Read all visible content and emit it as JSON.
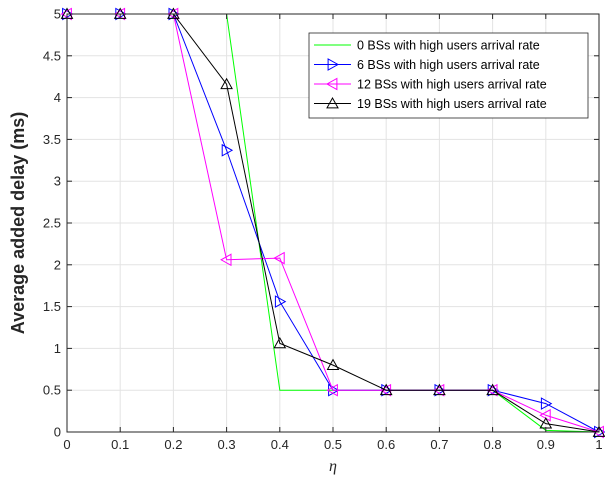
{
  "chart_data": {
    "type": "line",
    "title": "",
    "xlabel": "η",
    "ylabel": "Average added delay (ms)",
    "xlim": [
      0,
      1
    ],
    "ylim": [
      0,
      5
    ],
    "x_ticks": [
      "0",
      "0.1",
      "0.2",
      "0.3",
      "0.4",
      "0.5",
      "0.6",
      "0.7",
      "0.8",
      "0.9",
      "1"
    ],
    "y_ticks": [
      "0",
      "0.5",
      "1",
      "1.5",
      "2",
      "2.5",
      "3",
      "3.5",
      "4",
      "4.5",
      "5"
    ],
    "grid": true,
    "legend_position": "top-right",
    "series": [
      {
        "name": "0 BSs with high users arrival rate",
        "color": "#00ff00",
        "marker": "none",
        "x": [
          0,
          0.1,
          0.2,
          0.3,
          0.4,
          0.5,
          0.6,
          0.7,
          0.8,
          0.9,
          1
        ],
        "values": [
          5,
          5,
          5,
          5,
          0.5,
          0.5,
          0.5,
          0.5,
          0.5,
          0.02,
          0.0
        ]
      },
      {
        "name": "6 BSs with high users arrival rate",
        "color": "#0000ff",
        "marker": "triangle-right",
        "x": [
          0,
          0.1,
          0.2,
          0.3,
          0.4,
          0.5,
          0.6,
          0.7,
          0.8,
          0.9,
          1
        ],
        "values": [
          5,
          5,
          5,
          3.37,
          1.56,
          0.5,
          0.5,
          0.5,
          0.5,
          0.34,
          0.0
        ]
      },
      {
        "name": "12 BSs with high users arrival rate",
        "color": "#ff00ff",
        "marker": "triangle-left",
        "x": [
          0,
          0.1,
          0.2,
          0.3,
          0.4,
          0.5,
          0.6,
          0.7,
          0.8,
          0.9,
          1
        ],
        "values": [
          5,
          5,
          5,
          2.06,
          2.08,
          0.5,
          0.5,
          0.5,
          0.5,
          0.2,
          0.0
        ]
      },
      {
        "name": "19 BSs with high users arrival rate",
        "color": "#000000",
        "marker": "triangle-up",
        "x": [
          0,
          0.1,
          0.2,
          0.3,
          0.4,
          0.5,
          0.6,
          0.7,
          0.8,
          0.9,
          1
        ],
        "values": [
          5,
          5,
          5,
          4.16,
          1.06,
          0.8,
          0.5,
          0.5,
          0.5,
          0.1,
          0.0
        ]
      }
    ]
  }
}
